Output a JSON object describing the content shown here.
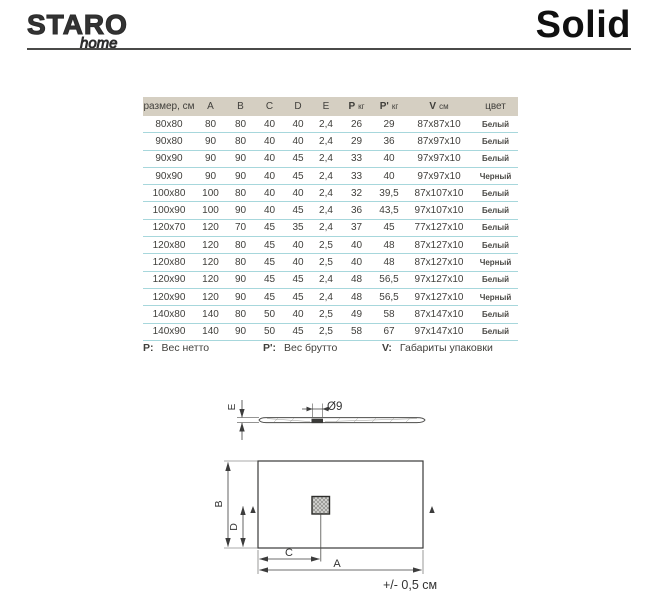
{
  "header": {
    "brand": "STARO",
    "brand_sub": "home",
    "title": "Solid"
  },
  "table": {
    "headers": [
      {
        "main": "размер, см",
        "unit": ""
      },
      {
        "main": "A",
        "unit": ""
      },
      {
        "main": "B",
        "unit": ""
      },
      {
        "main": "C",
        "unit": ""
      },
      {
        "main": "D",
        "unit": ""
      },
      {
        "main": "E",
        "unit": ""
      },
      {
        "main": "P",
        "unit": "кг"
      },
      {
        "main": "P'",
        "unit": "кг"
      },
      {
        "main": "V",
        "unit": "см"
      },
      {
        "main": "цвет",
        "unit": ""
      }
    ],
    "rows": [
      [
        "80x80",
        "80",
        "80",
        "40",
        "40",
        "2,4",
        "26",
        "29",
        "87x87x10",
        "Белый"
      ],
      [
        "90x80",
        "90",
        "80",
        "40",
        "40",
        "2,4",
        "29",
        "36",
        "87x97x10",
        "Белый"
      ],
      [
        "90x90",
        "90",
        "90",
        "40",
        "45",
        "2,4",
        "33",
        "40",
        "97x97x10",
        "Белый"
      ],
      [
        "90x90",
        "90",
        "90",
        "40",
        "45",
        "2,4",
        "33",
        "40",
        "97x97x10",
        "Черный"
      ],
      [
        "100x80",
        "100",
        "80",
        "40",
        "40",
        "2,4",
        "32",
        "39,5",
        "87x107x10",
        "Белый"
      ],
      [
        "100x90",
        "100",
        "90",
        "40",
        "45",
        "2,4",
        "36",
        "43,5",
        "97x107x10",
        "Белый"
      ],
      [
        "120x70",
        "120",
        "70",
        "45",
        "35",
        "2,4",
        "37",
        "45",
        "77x127x10",
        "Белый"
      ],
      [
        "120x80",
        "120",
        "80",
        "45",
        "40",
        "2,5",
        "40",
        "48",
        "87x127x10",
        "Белый"
      ],
      [
        "120x80",
        "120",
        "80",
        "45",
        "40",
        "2,5",
        "40",
        "48",
        "87x127x10",
        "Черный"
      ],
      [
        "120x90",
        "120",
        "90",
        "45",
        "45",
        "2,4",
        "48",
        "56,5",
        "97x127x10",
        "Белый"
      ],
      [
        "120x90",
        "120",
        "90",
        "45",
        "45",
        "2,4",
        "48",
        "56,5",
        "97x127x10",
        "Черный"
      ],
      [
        "140x80",
        "140",
        "80",
        "50",
        "40",
        "2,5",
        "49",
        "58",
        "87x147x10",
        "Белый"
      ],
      [
        "140x90",
        "140",
        "90",
        "50",
        "45",
        "2,5",
        "58",
        "67",
        "97x147x10",
        "Белый"
      ]
    ]
  },
  "legend": {
    "items": [
      {
        "key": "P:",
        "label": "Вес нетто"
      },
      {
        "key": "P':",
        "label": "Вес брутто"
      },
      {
        "key": "V:",
        "label": "Габариты упаковки"
      }
    ]
  },
  "drawing": {
    "diameter_label": "Ø9",
    "dim_a": "A",
    "dim_b": "B",
    "dim_c": "C",
    "dim_d": "D",
    "dim_e": "E",
    "tolerance": "+/- 0,5 см"
  },
  "colors": {
    "header_bg": "#d5cfc2",
    "row_divider": "#a7d7dc",
    "text": "#403f3b"
  }
}
